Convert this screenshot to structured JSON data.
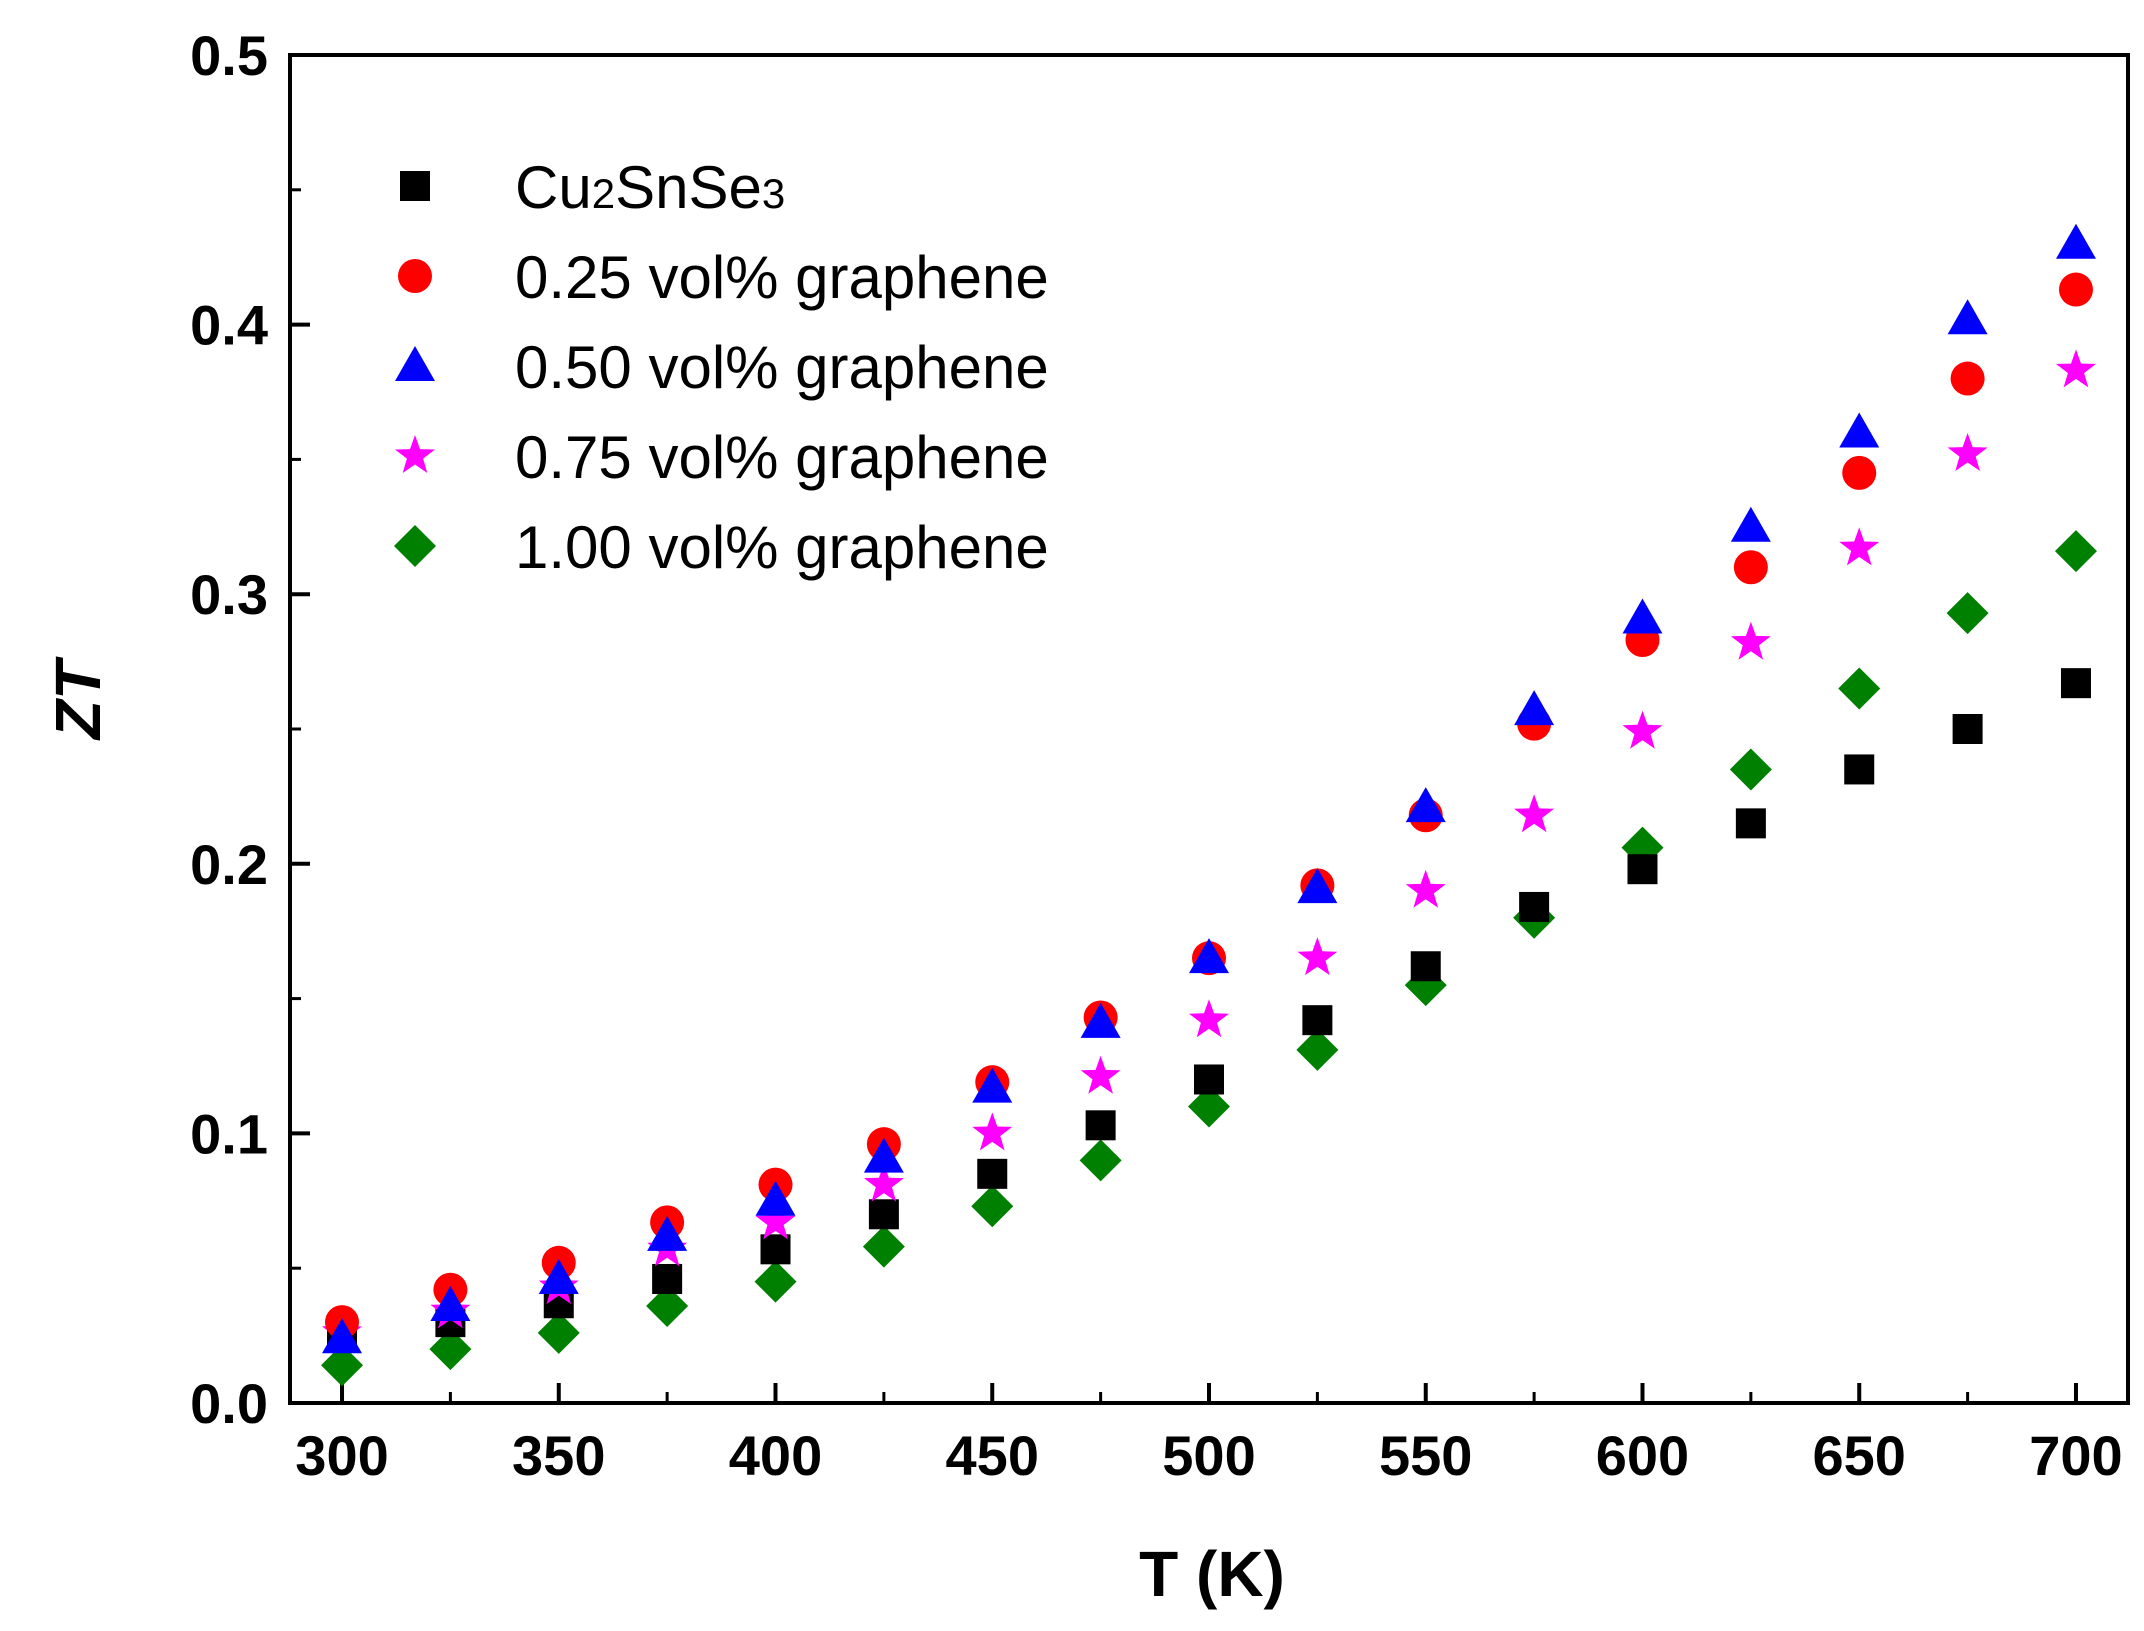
{
  "chart_data": {
    "type": "scatter",
    "title": "",
    "xlabel": "T (K)",
    "ylabel": "ZT",
    "xlim": [
      288,
      712
    ],
    "ylim": [
      0.0,
      0.5
    ],
    "xticks": [
      300,
      350,
      400,
      450,
      500,
      550,
      600,
      650,
      700
    ],
    "yticks": [
      0.0,
      0.1,
      0.2,
      0.3,
      0.4,
      0.5
    ],
    "xtick_labels": [
      "300",
      "350",
      "400",
      "450",
      "500",
      "550",
      "600",
      "650",
      "700"
    ],
    "ytick_labels": [
      "0.0",
      "0.1",
      "0.2",
      "0.3",
      "0.4",
      "0.5"
    ],
    "grid": false,
    "legend_position": "top-left",
    "x": [
      300,
      325,
      350,
      375,
      400,
      425,
      450,
      475,
      500,
      525,
      550,
      575,
      600,
      625,
      650,
      675,
      700
    ],
    "series": [
      {
        "name": "Cu2SnSe3",
        "name_parts": [
          {
            "text": "Cu",
            "sub": false
          },
          {
            "text": "2",
            "sub": true
          },
          {
            "text": "SnSe",
            "sub": false
          },
          {
            "text": "3",
            "sub": true
          }
        ],
        "marker": "square",
        "color": "#000000",
        "values": [
          0.025,
          0.03,
          0.037,
          0.046,
          0.057,
          0.07,
          0.085,
          0.103,
          0.12,
          0.142,
          0.162,
          0.184,
          0.198,
          0.215,
          0.235,
          0.25,
          0.267
        ]
      },
      {
        "name": "0.25 vol% graphene",
        "marker": "circle",
        "color": "#ff0000",
        "values": [
          0.03,
          0.042,
          0.052,
          0.067,
          0.081,
          0.096,
          0.119,
          0.143,
          0.165,
          0.192,
          0.218,
          0.252,
          0.283,
          0.31,
          0.345,
          0.38,
          0.413
        ]
      },
      {
        "name": "0.50 vol% graphene",
        "marker": "triangle",
        "color": "#0000ff",
        "values": [
          0.024,
          0.036,
          0.046,
          0.062,
          0.075,
          0.091,
          0.117,
          0.141,
          0.165,
          0.191,
          0.221,
          0.257,
          0.291,
          0.325,
          0.36,
          0.402,
          0.43
        ]
      },
      {
        "name": "0.75 vol% graphene",
        "marker": "star",
        "color": "#ff00ff",
        "values": [
          0.026,
          0.034,
          0.043,
          0.057,
          0.067,
          0.081,
          0.1,
          0.121,
          0.142,
          0.165,
          0.19,
          0.218,
          0.249,
          0.282,
          0.317,
          0.352,
          0.383
        ]
      },
      {
        "name": "1.00 vol% graphene",
        "marker": "diamond",
        "color": "#008000",
        "values": [
          0.014,
          0.02,
          0.026,
          0.036,
          0.045,
          0.058,
          0.073,
          0.09,
          0.11,
          0.131,
          0.155,
          0.18,
          0.206,
          0.235,
          0.265,
          0.293,
          0.316
        ]
      }
    ]
  }
}
